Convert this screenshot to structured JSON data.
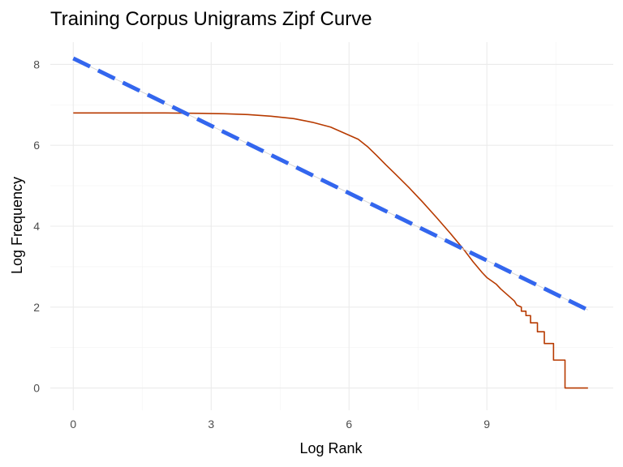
{
  "chart_data": {
    "type": "line",
    "title": "Training Corpus Unigrams Zipf Curve",
    "xlabel": "Log Rank",
    "ylabel": "Log Frequency",
    "xlim": [
      -0.5,
      11.75
    ],
    "ylim": [
      -0.55,
      8.55
    ],
    "x_ticks": [
      0,
      3,
      6,
      9
    ],
    "x_tick_labels": [
      "0",
      "3",
      "6",
      "9"
    ],
    "y_ticks": [
      0,
      2,
      4,
      6,
      8
    ],
    "y_tick_labels": [
      "0",
      "2",
      "4",
      "6",
      "8"
    ],
    "grid": true,
    "series": [
      {
        "kind": "curve",
        "color": "#b73a00",
        "x": [
          0,
          1,
          2,
          2.8,
          3.3,
          3.8,
          4.3,
          4.8,
          5.2,
          5.6,
          5.9,
          6.2,
          6.4,
          6.6,
          6.8,
          7.0,
          7.3,
          7.6,
          7.9,
          8.2,
          8.5,
          8.7,
          8.9,
          9.0,
          9.2,
          9.3,
          9.4,
          9.5,
          9.6,
          9.65,
          9.75,
          9.75,
          9.85,
          9.85,
          9.95,
          9.95,
          10.1,
          10.1,
          10.25,
          10.25,
          10.45,
          10.45,
          10.7,
          10.7,
          11.2
        ],
        "y": [
          6.8,
          6.8,
          6.8,
          6.79,
          6.78,
          6.76,
          6.72,
          6.66,
          6.57,
          6.45,
          6.3,
          6.15,
          5.97,
          5.75,
          5.52,
          5.3,
          4.96,
          4.6,
          4.22,
          3.83,
          3.42,
          3.12,
          2.85,
          2.73,
          2.57,
          2.45,
          2.35,
          2.25,
          2.15,
          2.05,
          2.0,
          1.9,
          1.9,
          1.79,
          1.79,
          1.61,
          1.61,
          1.39,
          1.39,
          1.1,
          1.1,
          0.69,
          0.69,
          0.0,
          0.0
        ]
      },
      {
        "kind": "fit-line",
        "color": "#3366ee",
        "x": [
          0,
          11.2
        ],
        "y": [
          8.15,
          1.93
        ]
      }
    ]
  }
}
